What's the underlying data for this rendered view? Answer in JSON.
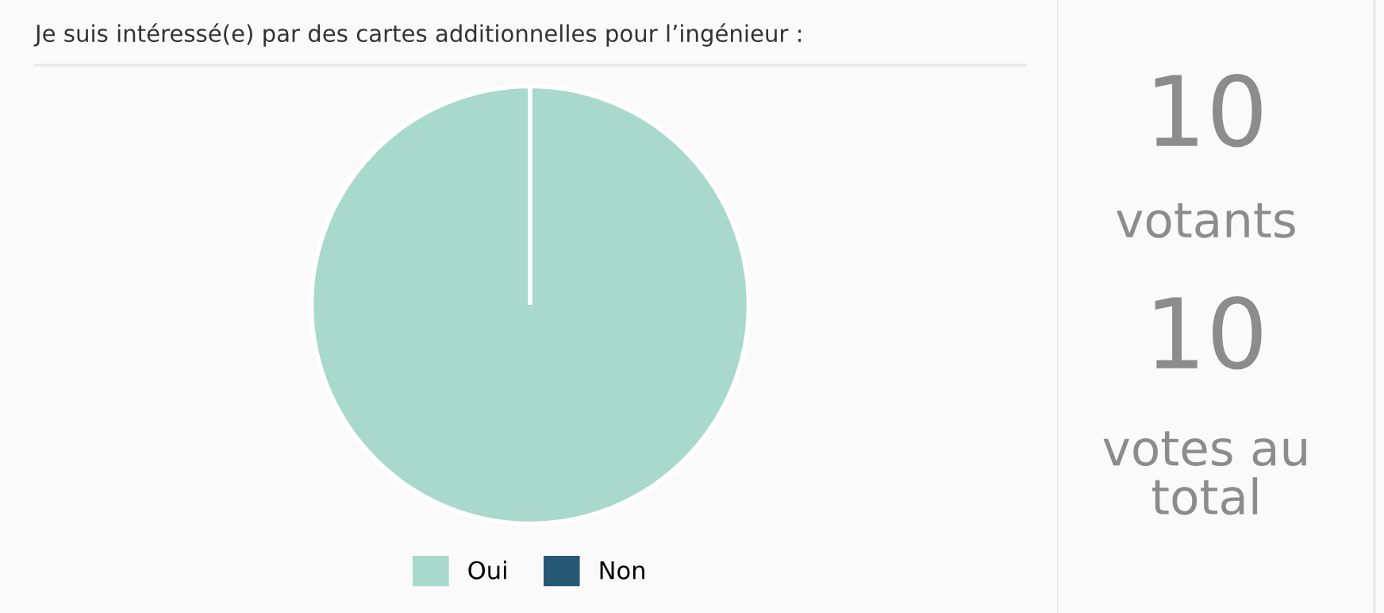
{
  "chart_data": [
    {
      "type": "pie",
      "title": "Je suis intéressé(e) par des cartes additionnelles pour l’ingénieur :",
      "categories": [
        "Oui",
        "Non"
      ],
      "values": [
        100,
        0
      ],
      "colors": [
        "#a8d9cb",
        "#275873"
      ],
      "legend": "bottom"
    },
    {
      "type": "other",
      "annotations": [
        "10",
        "votants",
        "10",
        "votes au total"
      ]
    }
  ]
}
